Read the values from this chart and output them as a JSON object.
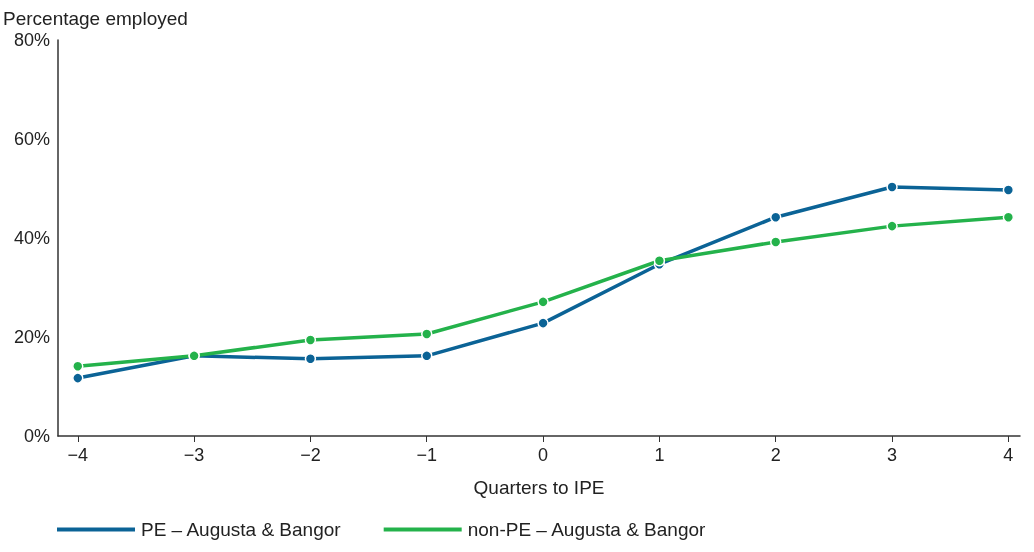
{
  "chart_data": {
    "type": "line",
    "ylabel": "Percentage employed",
    "xlabel": "Quarters to IPE",
    "x": [
      -4,
      -3,
      -2,
      -1,
      0,
      1,
      2,
      3,
      4
    ],
    "series": [
      {
        "name": "PE – Augusta & Bangor",
        "color": "#0b6396",
        "values": [
          11.7,
          16.2,
          15.6,
          16.2,
          22.8,
          34.7,
          44.2,
          50.3,
          49.7
        ]
      },
      {
        "name": "non-PE – Augusta & Bangor",
        "color": "#24b24b",
        "values": [
          14.1,
          16.2,
          19.4,
          20.6,
          27.1,
          35.4,
          39.2,
          42.4,
          44.2
        ]
      }
    ],
    "xlim": [
      -4.17,
      4.1
    ],
    "xticks": [
      {
        "value": -4,
        "label": "−4"
      },
      {
        "value": -3,
        "label": "−3"
      },
      {
        "value": -2,
        "label": "−2"
      },
      {
        "value": -1,
        "label": "−1"
      },
      0,
      1,
      2,
      3,
      4
    ],
    "ylim": [
      0,
      80
    ],
    "yticks": [
      {
        "value": 0,
        "label": "0%"
      },
      {
        "value": 20,
        "label": "20%"
      },
      {
        "value": 40,
        "label": "40%"
      },
      {
        "value": 60,
        "label": "60%"
      },
      {
        "value": 80,
        "label": "80%"
      }
    ],
    "grid": false,
    "legend": "bottom left",
    "marker": "circle",
    "line_style": "solid"
  }
}
